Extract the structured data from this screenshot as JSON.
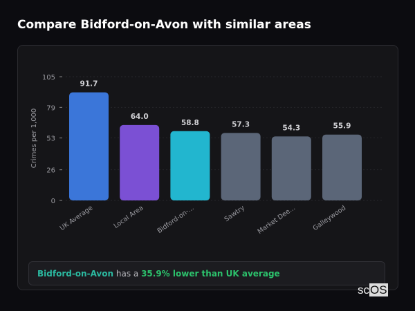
{
  "header": {
    "title": "Compare Bidford-on-Avon with similar areas"
  },
  "chart_data": {
    "type": "bar",
    "categories": [
      "UK Average",
      "Local Area",
      "Bidford-on-...",
      "Sawtry",
      "Market Dee...",
      "Galleywood"
    ],
    "values": [
      91.7,
      64.0,
      58.8,
      57.3,
      54.3,
      55.9
    ],
    "value_labels": [
      "91.7",
      "64.0",
      "58.8",
      "57.3",
      "54.3",
      "55.9"
    ],
    "colors": [
      "#3b76d9",
      "#7b50d4",
      "#22b6cf",
      "#5b6678",
      "#5b6678",
      "#5b6678"
    ],
    "ylabel": "Crimes per 1,000",
    "yticks": [
      0,
      26,
      53,
      79,
      105
    ],
    "ylim": [
      0,
      105
    ],
    "grid": true
  },
  "summary": {
    "place": "Bidford-on-Avon",
    "middle": " has a ",
    "highlight": "35.9% lower than UK average"
  },
  "watermark": {
    "text_a": "sc",
    "text_b": "OS"
  }
}
